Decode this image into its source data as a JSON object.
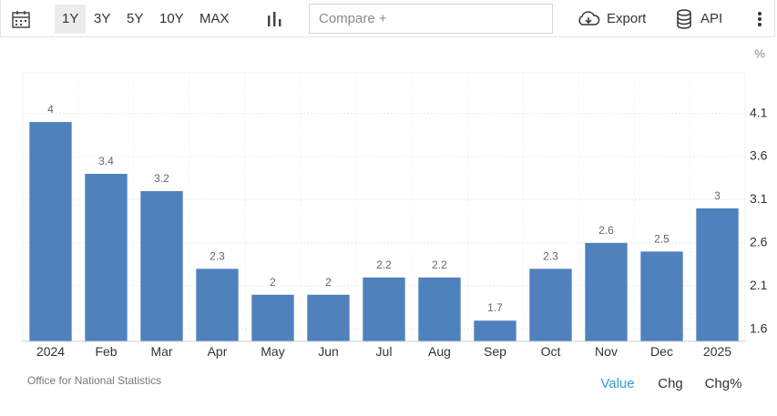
{
  "toolbar": {
    "ranges": [
      "1Y",
      "3Y",
      "5Y",
      "10Y",
      "MAX"
    ],
    "selected_range": "1Y",
    "compare_placeholder": "Compare +",
    "export": "Export",
    "api": "API"
  },
  "chart_data": {
    "type": "bar",
    "y_unit": "%",
    "categories": [
      "2024",
      "Feb",
      "Mar",
      "Apr",
      "May",
      "Jun",
      "Jul",
      "Aug",
      "Sep",
      "Oct",
      "Nov",
      "Dec",
      "2025"
    ],
    "values": [
      4,
      3.4,
      3.2,
      2.3,
      2,
      2,
      2.2,
      2.2,
      1.7,
      2.3,
      2.6,
      2.5,
      3
    ],
    "color": "#4f81bd",
    "ylim": [
      1.46,
      4.57
    ],
    "yticks": [
      1.6,
      2.1,
      2.6,
      3.1,
      3.6,
      4.1
    ],
    "grid": true,
    "y_axis_side": "right"
  },
  "footer": {
    "source": "Office for National Statistics",
    "views": [
      "Value",
      "Chg",
      "Chg%"
    ],
    "selected_view": "Value"
  }
}
